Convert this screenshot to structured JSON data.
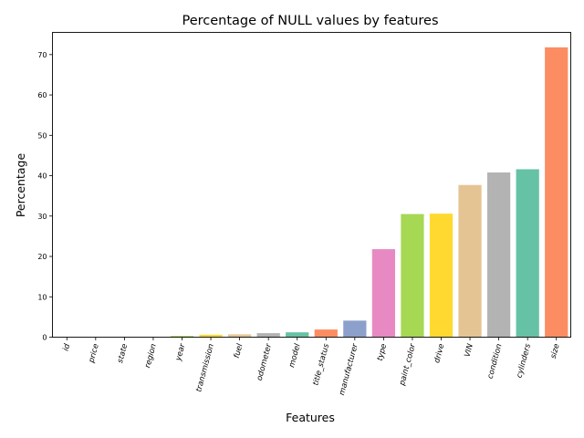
{
  "chart_data": {
    "type": "bar",
    "title": "Percentage of NULL values by features",
    "xlabel": "Features",
    "ylabel": "Percentage",
    "ylim": [
      0,
      75.5
    ],
    "yticks": [
      0,
      10,
      20,
      30,
      40,
      50,
      60,
      70
    ],
    "grid": false,
    "legend": "none",
    "categories": [
      "id",
      "price",
      "state",
      "region",
      "year",
      "transmission",
      "fuel",
      "odometer",
      "model",
      "title_status",
      "manufacturer",
      "type",
      "paint_color",
      "drive",
      "VIN",
      "condition",
      "cylinders",
      "size"
    ],
    "values": [
      0,
      0,
      0,
      0,
      0.3,
      0.6,
      0.7,
      1.0,
      1.2,
      1.9,
      4.1,
      21.8,
      30.5,
      30.6,
      37.7,
      40.8,
      41.6,
      71.8
    ],
    "colors": [
      "#66c2a5",
      "#fc8d62",
      "#8da0cb",
      "#e78ac3",
      "#a6d854",
      "#ffd92f",
      "#e5c494",
      "#b3b3b3",
      "#66c2a5",
      "#fc8d62",
      "#8da0cb",
      "#e78ac3",
      "#a6d854",
      "#ffd92f",
      "#e5c494",
      "#b3b3b3",
      "#66c2a5",
      "#fc8d62"
    ]
  }
}
